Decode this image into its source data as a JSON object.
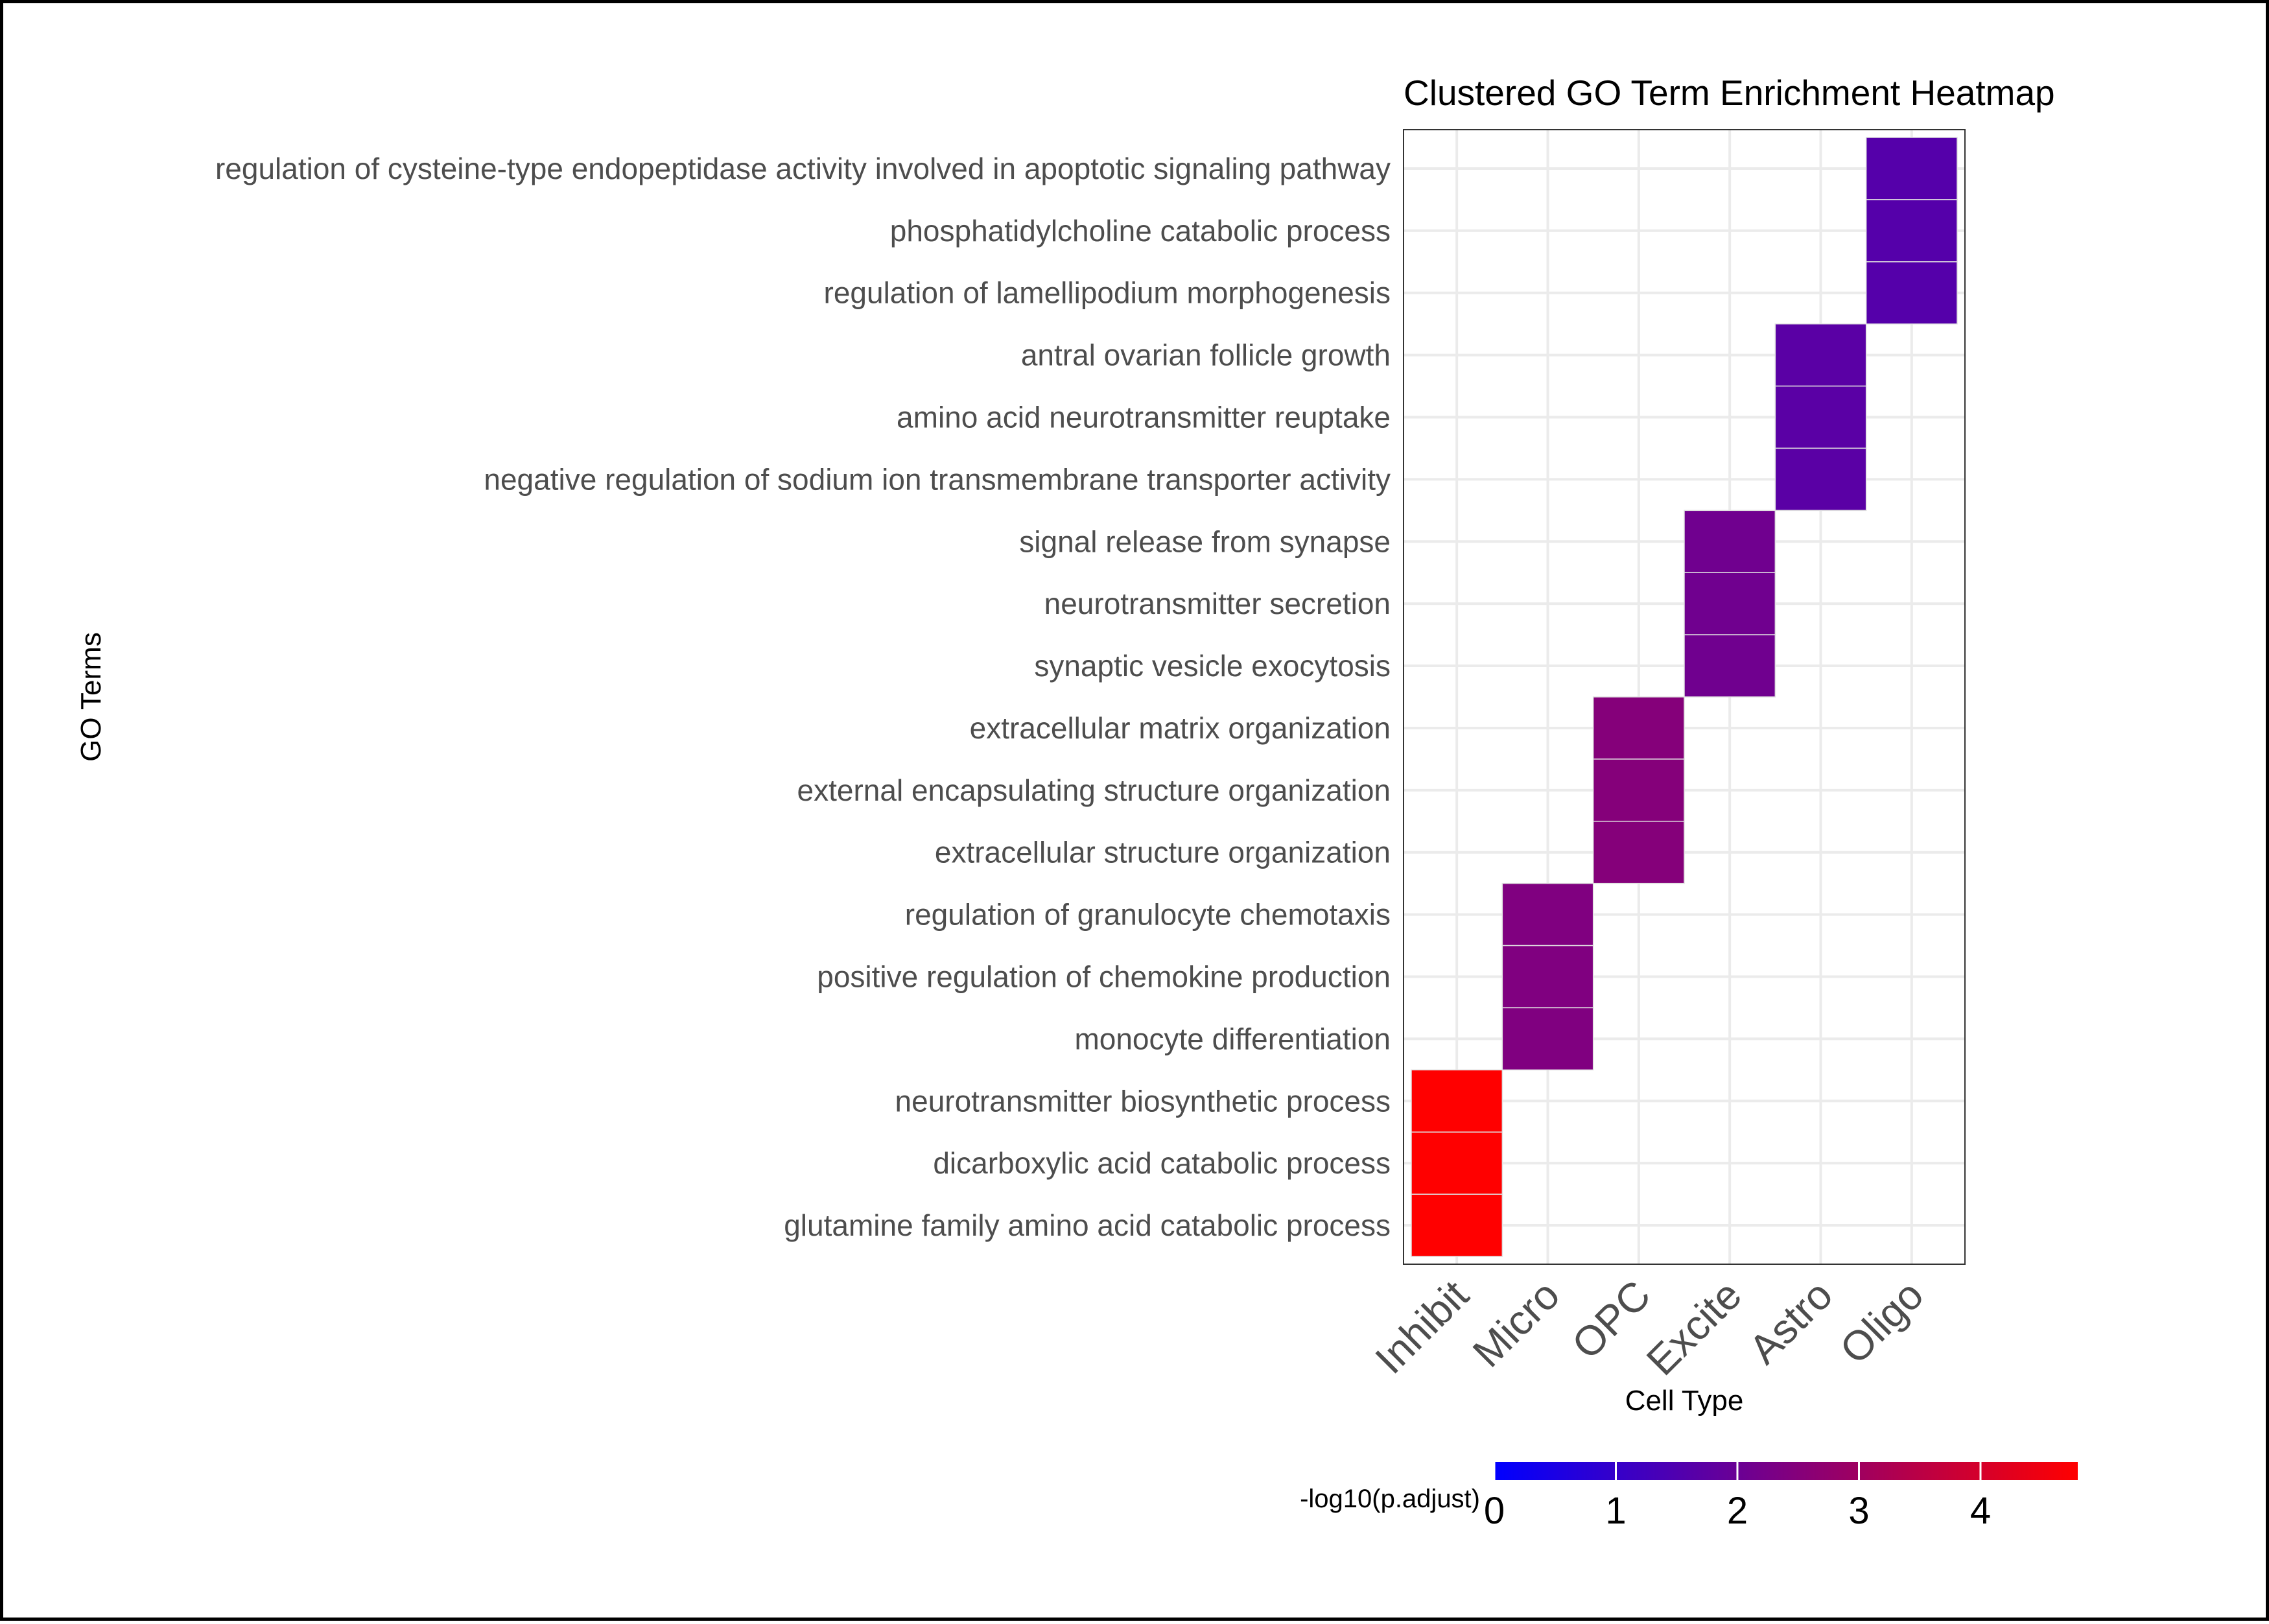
{
  "chart_data": {
    "type": "heatmap",
    "title": "Clustered GO Term Enrichment Heatmap",
    "xlabel": "Cell Type",
    "ylabel": "GO Terms",
    "x_categories": [
      "Inhibit",
      "Micro",
      "OPC",
      "Excite",
      "Astro",
      "Oligo"
    ],
    "y_categories": [
      "regulation of cysteine-type endopeptidase activity involved in apoptotic signaling pathway",
      "phosphatidylcholine catabolic process",
      "regulation of lamellipodium morphogenesis",
      "antral ovarian follicle growth",
      "amino acid neurotransmitter reuptake",
      "negative regulation of sodium ion transmembrane transporter activity",
      "signal release from synapse",
      "neurotransmitter secretion",
      "synaptic vesicle exocytosis",
      "extracellular matrix organization",
      "external encapsulating structure organization",
      "extracellular structure organization",
      "regulation of granulocyte chemotaxis",
      "positive regulation of chemokine production",
      "monocyte differentiation",
      "neurotransmitter biosynthetic process",
      "dicarboxylic acid catabolic process",
      "glutamine family amino acid catabolic process"
    ],
    "cells": [
      {
        "x": "Oligo",
        "y": "regulation of cysteine-type endopeptidase activity involved in apoptotic signaling pathway",
        "value": 1.6
      },
      {
        "x": "Oligo",
        "y": "phosphatidylcholine catabolic process",
        "value": 1.6
      },
      {
        "x": "Oligo",
        "y": "regulation of lamellipodium morphogenesis",
        "value": 1.6
      },
      {
        "x": "Astro",
        "y": "antral ovarian follicle growth",
        "value": 1.7
      },
      {
        "x": "Astro",
        "y": "amino acid neurotransmitter reuptake",
        "value": 1.7
      },
      {
        "x": "Astro",
        "y": "negative regulation of sodium ion transmembrane transporter activity",
        "value": 1.7
      },
      {
        "x": "Excite",
        "y": "signal release from synapse",
        "value": 2.1
      },
      {
        "x": "Excite",
        "y": "neurotransmitter secretion",
        "value": 2.1
      },
      {
        "x": "Excite",
        "y": "synaptic vesicle exocytosis",
        "value": 2.1
      },
      {
        "x": "OPC",
        "y": "extracellular matrix organization",
        "value": 2.5
      },
      {
        "x": "OPC",
        "y": "external encapsulating structure organization",
        "value": 2.5
      },
      {
        "x": "OPC",
        "y": "extracellular structure organization",
        "value": 2.5
      },
      {
        "x": "Micro",
        "y": "regulation of granulocyte chemotaxis",
        "value": 2.4
      },
      {
        "x": "Micro",
        "y": "positive regulation of chemokine production",
        "value": 2.4
      },
      {
        "x": "Micro",
        "y": "monocyte differentiation",
        "value": 2.4
      },
      {
        "x": "Inhibit",
        "y": "neurotransmitter biosynthetic process",
        "value": 4.8
      },
      {
        "x": "Inhibit",
        "y": "dicarboxylic acid catabolic process",
        "value": 4.8
      },
      {
        "x": "Inhibit",
        "y": "glutamine family amino acid catabolic process",
        "value": 4.8
      }
    ],
    "legend": {
      "title": "-log10(p.adjust)",
      "ticks": [
        0,
        1,
        2,
        3,
        4
      ],
      "range": [
        0,
        4.8
      ],
      "colors": [
        "#0000ff",
        "#ff0000"
      ],
      "placement": "bottom"
    },
    "grid": true
  }
}
